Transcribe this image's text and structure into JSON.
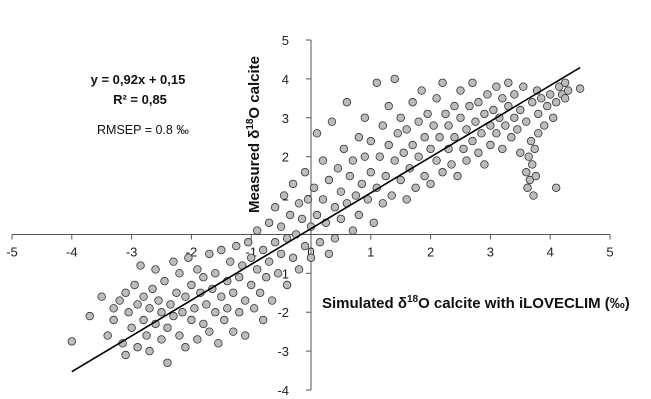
{
  "chart_data": {
    "type": "scatter",
    "title": "",
    "xlabel": {
      "pre": "Simulated δ",
      "sup": "18",
      "post": "O calcite with iLOVECLIM (‰)"
    },
    "ylabel": {
      "pre": "Measured δ",
      "sup": "18",
      "post": "O calcite"
    },
    "xlim": [
      -5,
      5
    ],
    "ylim": [
      -4,
      5
    ],
    "x_ticks": [
      "-5",
      "-4",
      "-3",
      "-2",
      "-1",
      "0",
      "1",
      "2",
      "3",
      "4",
      "5"
    ],
    "y_ticks": [
      "-4",
      "-3",
      "-2",
      "-1",
      "1",
      "2",
      "3",
      "4",
      "5"
    ],
    "grid": false,
    "axes_cross_at_origin": true,
    "point_fill": "#bcbcbc",
    "point_stroke": "#333333",
    "regression": {
      "slope": 0.92,
      "intercept": 0.15,
      "x_range": [
        -4.0,
        4.5
      ]
    },
    "annotations": {
      "equation": "y = 0,92x + 0,15",
      "r2": "R² = 0,85",
      "rmsep": "RMSEP = 0.8 ‰"
    },
    "series": [
      {
        "points": [
          [
            -4.0,
            -2.75
          ],
          [
            -3.7,
            -2.1
          ],
          [
            -3.5,
            -1.6
          ],
          [
            -3.4,
            -2.6
          ],
          [
            -3.3,
            -1.9
          ],
          [
            -3.3,
            -2.2
          ],
          [
            -3.2,
            -1.7
          ],
          [
            -3.15,
            -2.8
          ],
          [
            -3.1,
            -1.5
          ],
          [
            -3.1,
            -3.1
          ],
          [
            -3.05,
            -2.0
          ],
          [
            -3.0,
            -2.4
          ],
          [
            -2.95,
            -1.3
          ],
          [
            -2.9,
            -2.9
          ],
          [
            -2.9,
            -1.8
          ],
          [
            -2.85,
            -0.8
          ],
          [
            -2.8,
            -2.2
          ],
          [
            -2.8,
            -1.6
          ],
          [
            -2.75,
            -2.6
          ],
          [
            -2.7,
            -1.9
          ],
          [
            -2.7,
            -3.0
          ],
          [
            -2.65,
            -1.4
          ],
          [
            -2.6,
            -2.3
          ],
          [
            -2.6,
            -0.9
          ],
          [
            -2.55,
            -1.7
          ],
          [
            -2.5,
            -2.7
          ],
          [
            -2.5,
            -2.0
          ],
          [
            -2.45,
            -1.2
          ],
          [
            -2.4,
            -2.4
          ],
          [
            -2.4,
            -3.3
          ],
          [
            -2.35,
            -1.8
          ],
          [
            -2.3,
            -0.7
          ],
          [
            -2.3,
            -2.1
          ],
          [
            -2.25,
            -1.5
          ],
          [
            -2.2,
            -2.6
          ],
          [
            -2.2,
            -1.0
          ],
          [
            -2.15,
            -2.0
          ],
          [
            -2.1,
            -2.9
          ],
          [
            -2.1,
            -1.6
          ],
          [
            -2.05,
            -0.6
          ],
          [
            -2.0,
            -2.2
          ],
          [
            -2.0,
            -1.3
          ],
          [
            -1.95,
            -1.9
          ],
          [
            -1.9,
            -2.7
          ],
          [
            -1.9,
            -0.9
          ],
          [
            -1.85,
            -1.5
          ],
          [
            -1.8,
            -2.3
          ],
          [
            -1.8,
            -1.1
          ],
          [
            -1.75,
            -1.8
          ],
          [
            -1.7,
            -2.5
          ],
          [
            -1.7,
            -0.5
          ],
          [
            -1.65,
            -1.4
          ],
          [
            -1.6,
            -2.0
          ],
          [
            -1.6,
            -1.0
          ],
          [
            -1.55,
            -2.8
          ],
          [
            -1.5,
            -1.6
          ],
          [
            -1.5,
            -0.4
          ],
          [
            -1.45,
            -2.2
          ],
          [
            -1.4,
            -1.2
          ],
          [
            -1.4,
            -1.9
          ],
          [
            -1.35,
            -0.7
          ],
          [
            -1.3,
            -2.5
          ],
          [
            -1.3,
            -1.5
          ],
          [
            -1.25,
            -0.3
          ],
          [
            -1.2,
            -1.1
          ],
          [
            -1.2,
            -2.0
          ],
          [
            -1.15,
            -0.8
          ],
          [
            -1.1,
            -1.7
          ],
          [
            -1.1,
            -2.6
          ],
          [
            -1.05,
            -0.2
          ],
          [
            -1.0,
            -1.3
          ],
          [
            -1.0,
            -0.6
          ],
          [
            -0.95,
            -1.9
          ],
          [
            -0.9,
            -0.9
          ],
          [
            -0.9,
            0.1
          ],
          [
            -0.85,
            -1.5
          ],
          [
            -0.8,
            -0.4
          ],
          [
            -0.8,
            -2.2
          ],
          [
            -0.75,
            -1.1
          ],
          [
            -0.7,
            0.3
          ],
          [
            -0.7,
            -0.7
          ],
          [
            -0.65,
            -1.7
          ],
          [
            -0.6,
            -0.2
          ],
          [
            -0.6,
            0.7
          ],
          [
            -0.55,
            -1.0
          ],
          [
            -0.5,
            0.2
          ],
          [
            -0.5,
            -0.5
          ],
          [
            -0.45,
            1.0
          ],
          [
            -0.4,
            -0.1
          ],
          [
            -0.4,
            -1.3
          ],
          [
            -0.35,
            0.5
          ],
          [
            -0.3,
            -0.6
          ],
          [
            -0.3,
            1.3
          ],
          [
            -0.25,
            0.0
          ],
          [
            -0.2,
            0.8
          ],
          [
            -0.2,
            -0.9
          ],
          [
            -0.15,
            0.4
          ],
          [
            -0.1,
            1.6
          ],
          [
            -0.1,
            -0.3
          ],
          [
            -0.05,
            0.9
          ],
          [
            0.0,
            0.2
          ],
          [
            0.0,
            -0.6
          ],
          [
            0.05,
            1.2
          ],
          [
            0.1,
            0.5
          ],
          [
            0.1,
            2.6
          ],
          [
            0.15,
            -0.2
          ],
          [
            0.2,
            0.9
          ],
          [
            0.2,
            1.9
          ],
          [
            0.25,
            0.3
          ],
          [
            0.3,
            -0.5
          ],
          [
            0.3,
            1.4
          ],
          [
            0.35,
            2.9
          ],
          [
            0.4,
            0.7
          ],
          [
            0.4,
            -0.1
          ],
          [
            0.45,
            1.7
          ],
          [
            0.5,
            1.1
          ],
          [
            0.5,
            0.4
          ],
          [
            0.55,
            2.2
          ],
          [
            0.6,
            0.8
          ],
          [
            0.6,
            3.4
          ],
          [
            0.65,
            1.5
          ],
          [
            0.7,
            0.1
          ],
          [
            0.7,
            1.9
          ],
          [
            0.75,
            1.0
          ],
          [
            0.8,
            2.5
          ],
          [
            0.8,
            0.5
          ],
          [
            0.85,
            1.3
          ],
          [
            0.9,
            2.0
          ],
          [
            0.9,
            3.0
          ],
          [
            0.95,
            0.9
          ],
          [
            1.0,
            1.6
          ],
          [
            1.0,
            2.4
          ],
          [
            1.05,
            0.3
          ],
          [
            1.1,
            1.2
          ],
          [
            1.1,
            3.9
          ],
          [
            1.15,
            2.0
          ],
          [
            1.2,
            2.8
          ],
          [
            1.2,
            0.8
          ],
          [
            1.25,
            1.5
          ],
          [
            1.3,
            2.3
          ],
          [
            1.3,
            3.3
          ],
          [
            1.35,
            1.0
          ],
          [
            1.4,
            1.9
          ],
          [
            1.4,
            4.0
          ],
          [
            1.45,
            2.6
          ],
          [
            1.5,
            1.4
          ],
          [
            1.5,
            3.0
          ],
          [
            1.55,
            2.1
          ],
          [
            1.6,
            0.9
          ],
          [
            1.6,
            2.7
          ],
          [
            1.65,
            1.7
          ],
          [
            1.7,
            3.4
          ],
          [
            1.7,
            2.3
          ],
          [
            1.75,
            1.2
          ],
          [
            1.8,
            2.9
          ],
          [
            1.8,
            2.0
          ],
          [
            1.85,
            3.7
          ],
          [
            1.9,
            1.5
          ],
          [
            1.9,
            2.5
          ],
          [
            1.95,
            3.1
          ],
          [
            2.0,
            2.2
          ],
          [
            2.0,
            1.3
          ],
          [
            2.05,
            2.8
          ],
          [
            2.1,
            3.5
          ],
          [
            2.1,
            1.9
          ],
          [
            2.15,
            2.5
          ],
          [
            2.2,
            3.9
          ],
          [
            2.2,
            1.6
          ],
          [
            2.25,
            3.1
          ],
          [
            2.3,
            2.2
          ],
          [
            2.3,
            2.8
          ],
          [
            2.35,
            1.8
          ],
          [
            2.4,
            3.3
          ],
          [
            2.4,
            2.5
          ],
          [
            2.45,
            1.5
          ],
          [
            2.5,
            3.0
          ],
          [
            2.5,
            3.7
          ],
          [
            2.55,
            2.2
          ],
          [
            2.6,
            2.7
          ],
          [
            2.6,
            1.9
          ],
          [
            2.65,
            3.3
          ],
          [
            2.7,
            2.4
          ],
          [
            2.7,
            3.9
          ],
          [
            2.75,
            2.9
          ],
          [
            2.8,
            2.1
          ],
          [
            2.8,
            3.4
          ],
          [
            2.85,
            2.6
          ],
          [
            2.9,
            3.1
          ],
          [
            2.9,
            1.8
          ],
          [
            2.95,
            3.6
          ],
          [
            3.0,
            2.8
          ],
          [
            3.0,
            2.3
          ],
          [
            3.05,
            3.2
          ],
          [
            3.1,
            3.8
          ],
          [
            3.1,
            2.6
          ],
          [
            3.15,
            3.0
          ],
          [
            3.2,
            3.5
          ],
          [
            3.2,
            2.2
          ],
          [
            3.25,
            2.8
          ],
          [
            3.3,
            3.3
          ],
          [
            3.3,
            3.9
          ],
          [
            3.35,
            2.5
          ],
          [
            3.4,
            3.0
          ],
          [
            3.4,
            3.6
          ],
          [
            3.45,
            2.7
          ],
          [
            3.5,
            3.2
          ],
          [
            3.5,
            2.1
          ],
          [
            3.55,
            3.8
          ],
          [
            3.6,
            1.6
          ],
          [
            3.6,
            2.9
          ],
          [
            3.62,
            1.2
          ],
          [
            3.64,
            2.0
          ],
          [
            3.66,
            1.4
          ],
          [
            3.68,
            2.4
          ],
          [
            3.7,
            1.8
          ],
          [
            3.7,
            3.4
          ],
          [
            3.72,
            1.0
          ],
          [
            3.74,
            2.2
          ],
          [
            3.76,
            1.5
          ],
          [
            3.78,
            3.7
          ],
          [
            3.8,
            2.6
          ],
          [
            3.8,
            3.1
          ],
          [
            3.85,
            3.5
          ],
          [
            3.9,
            2.8
          ],
          [
            3.95,
            3.3
          ],
          [
            4.0,
            3.6
          ],
          [
            4.05,
            3.0
          ],
          [
            4.1,
            1.2
          ],
          [
            4.1,
            3.4
          ],
          [
            4.15,
            3.8
          ],
          [
            4.2,
            3.6
          ],
          [
            4.25,
            3.9
          ],
          [
            4.25,
            3.5
          ],
          [
            4.3,
            3.7
          ],
          [
            4.5,
            3.75
          ]
        ]
      }
    ]
  }
}
